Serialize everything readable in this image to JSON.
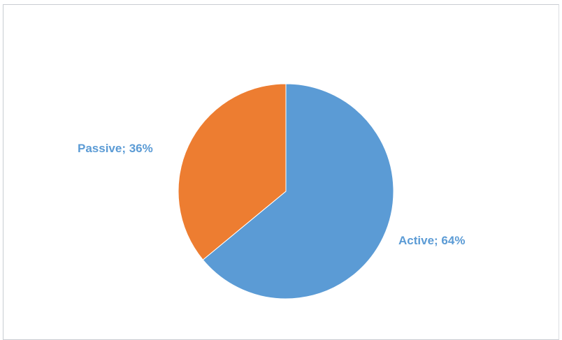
{
  "chart_data": {
    "type": "pie",
    "title": "",
    "slices": [
      {
        "label": "Active",
        "value": 64,
        "color": "#5b9bd5",
        "data_label": "Active; 64%"
      },
      {
        "label": "Passive",
        "value": 36,
        "color": "#ed7d31",
        "data_label": "Passive; 36%"
      }
    ],
    "start_angle_deg": 0,
    "direction": "clockwise",
    "legend": "none",
    "border_color": "#c9cdd2"
  }
}
